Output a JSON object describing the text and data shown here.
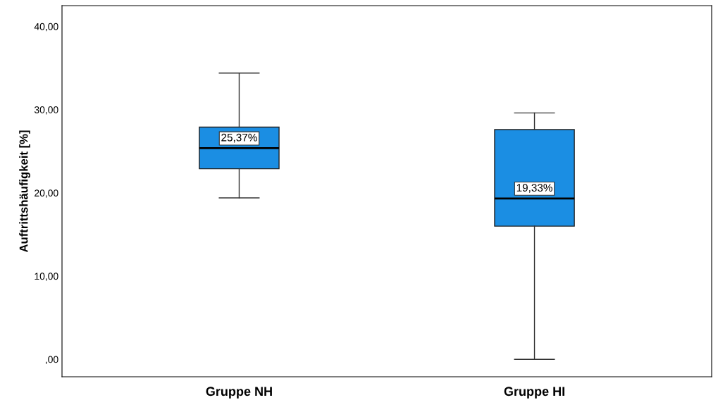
{
  "chart_data": {
    "type": "box",
    "ylabel": "Auftrittshäufigkeit [%]",
    "categories": [
      "Gruppe NH",
      "Gruppe HI"
    ],
    "boxes": [
      {
        "low": 19.4,
        "q1": 22.9,
        "median": 25.37,
        "q3": 27.9,
        "high": 34.4
      },
      {
        "low": 0,
        "q1": 16.0,
        "median": 19.33,
        "q3": 27.6,
        "high": 29.6
      }
    ],
    "color": "#1b8ee3",
    "ylim": [
      -2.1,
      42.5
    ],
    "yticks": [
      {
        "value": 0,
        "label": ",00"
      },
      {
        "value": 10,
        "label": "10,00"
      },
      {
        "value": 20,
        "label": "20,00"
      },
      {
        "value": 30,
        "label": "30,00"
      },
      {
        "value": 40,
        "label": "40,00"
      }
    ],
    "annotations": [
      {
        "text": "25,37%",
        "x": "Gruppe NH",
        "y": 25.37
      },
      {
        "text": "19,33%",
        "x": "Gruppe HI",
        "y": 19.33
      }
    ],
    "grid": false
  }
}
